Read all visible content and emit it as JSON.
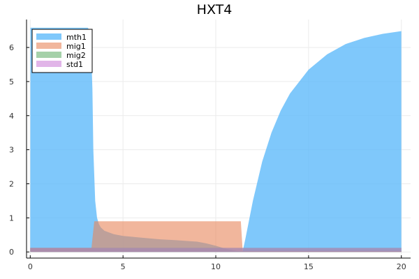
{
  "chart_data": {
    "type": "area",
    "title": "HXT4",
    "xlabel": "",
    "ylabel": "",
    "xlim": [
      -0.2,
      20.5
    ],
    "ylim": [
      -0.18,
      6.82
    ],
    "xticks": [
      0,
      5,
      10,
      15,
      20
    ],
    "yticks": [
      0,
      1,
      2,
      3,
      4,
      5,
      6
    ],
    "grid": true,
    "legend_position": "top-left",
    "series": [
      {
        "name": "mth1",
        "color": "#5bb9fa",
        "opacity": 0.78,
        "x": [
          0,
          0.01,
          3.1,
          3.2,
          3.3,
          3.35,
          3.4,
          3.5,
          3.6,
          3.7,
          3.8,
          4.0,
          4.5,
          5.0,
          6.0,
          7.0,
          8.0,
          9.0,
          9.5,
          10.0,
          10.5,
          11.0,
          11.3,
          11.45,
          11.6,
          12.0,
          12.5,
          13.0,
          13.5,
          14.0,
          15.0,
          16.0,
          17.0,
          18.0,
          19.0,
          20.0
        ],
        "y": [
          0.0,
          6.58,
          6.58,
          6.5,
          5.6,
          4.8,
          3.0,
          1.5,
          1.0,
          0.82,
          0.72,
          0.62,
          0.52,
          0.47,
          0.42,
          0.37,
          0.34,
          0.3,
          0.25,
          0.18,
          0.1,
          0.04,
          0.02,
          0.02,
          0.4,
          1.5,
          2.65,
          3.5,
          4.15,
          4.65,
          5.35,
          5.8,
          6.1,
          6.28,
          6.4,
          6.48
        ]
      },
      {
        "name": "mig1",
        "color": "#e8855a",
        "opacity": 0.6,
        "x": [
          0,
          3.3,
          3.45,
          3.6,
          11.35,
          11.45,
          20
        ],
        "y": [
          0.12,
          0.12,
          0.9,
          0.9,
          0.9,
          0.03,
          0.03
        ]
      },
      {
        "name": "mig2",
        "color": "#5bab62",
        "opacity": 0.55,
        "x": [
          0,
          20
        ],
        "y": [
          0.12,
          0.12
        ]
      },
      {
        "name": "std1",
        "color": "#c978d6",
        "opacity": 0.55,
        "x": [
          0,
          20
        ],
        "y": [
          0.12,
          0.12
        ]
      }
    ]
  }
}
